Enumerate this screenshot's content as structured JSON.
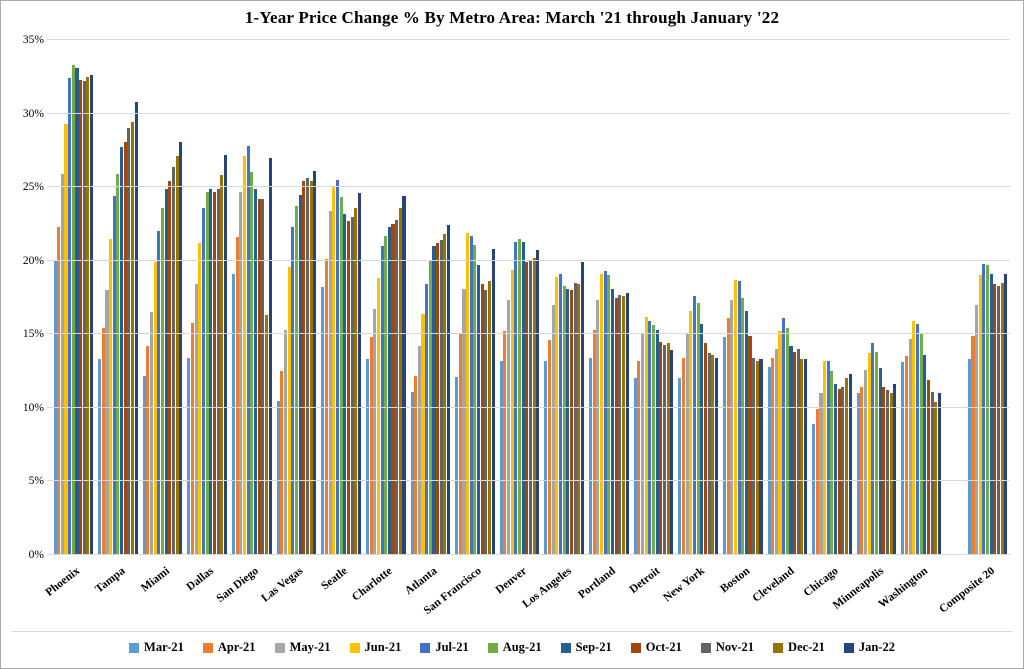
{
  "title": "1-Year Price Change % By Metro Area: March '21 through January '22",
  "chart_data": {
    "type": "bar",
    "title": "1-Year Price Change % By Metro Area: March '21 through January '22",
    "xlabel": "",
    "ylabel": "",
    "ylim": [
      0,
      35
    ],
    "ytick_step": 5,
    "ytick_format": "percent",
    "grid": true,
    "legend_position": "bottom",
    "separated_last_category": true,
    "categories": [
      "Phoenix",
      "Tampa",
      "Miami",
      "Dallas",
      "San Diego",
      "Las Vegas",
      "Seatle",
      "Charlotte",
      "Atlanta",
      "San Francisco",
      "Denver",
      "Los Angeles",
      "Portland",
      "Detroit",
      "New York",
      "Boston",
      "Cleveland",
      "Chicago",
      "Minneapolis",
      "Washington",
      "Composite 20"
    ],
    "series": [
      {
        "name": "Mar-21",
        "color": "#5B9BD5",
        "values": [
          20.0,
          13.3,
          12.2,
          13.4,
          19.1,
          10.5,
          18.2,
          13.3,
          11.1,
          12.1,
          13.2,
          13.2,
          13.4,
          12.0,
          12.0,
          14.8,
          12.8,
          8.9,
          11.0,
          13.1,
          13.3
        ]
      },
      {
        "name": "Apr-21",
        "color": "#ED7D31",
        "values": [
          22.3,
          15.4,
          14.2,
          15.8,
          21.6,
          12.5,
          20.1,
          14.8,
          12.2,
          15.0,
          15.2,
          14.6,
          15.3,
          13.2,
          13.4,
          16.1,
          13.4,
          9.9,
          11.4,
          13.5,
          14.9
        ]
      },
      {
        "name": "May-21",
        "color": "#A5A5A5",
        "values": [
          25.9,
          18.0,
          16.5,
          18.4,
          24.7,
          15.3,
          23.4,
          16.7,
          14.2,
          18.1,
          17.3,
          17.0,
          17.3,
          15.0,
          15.1,
          17.3,
          14.0,
          11.0,
          12.6,
          14.7,
          17.0
        ]
      },
      {
        "name": "Jun-21",
        "color": "#FFC000",
        "values": [
          29.3,
          21.5,
          19.9,
          21.2,
          27.1,
          19.6,
          25.0,
          18.8,
          16.4,
          21.9,
          19.4,
          18.9,
          19.1,
          16.2,
          16.6,
          18.7,
          15.2,
          13.2,
          13.7,
          15.9,
          19.0
        ]
      },
      {
        "name": "Jul-21",
        "color": "#4472C4",
        "values": [
          32.4,
          24.4,
          22.0,
          23.6,
          27.8,
          22.3,
          25.5,
          21.0,
          18.4,
          21.7,
          21.3,
          19.1,
          19.3,
          15.9,
          17.6,
          18.6,
          16.1,
          13.2,
          14.4,
          15.7,
          19.8
        ]
      },
      {
        "name": "Aug-21",
        "color": "#70AD47",
        "values": [
          33.3,
          25.9,
          23.6,
          24.7,
          26.0,
          23.7,
          24.3,
          21.7,
          20.0,
          21.1,
          21.5,
          18.3,
          19.0,
          15.6,
          17.1,
          17.5,
          15.4,
          12.5,
          13.8,
          15.1,
          19.7
        ]
      },
      {
        "name": "Sep-21",
        "color": "#255E91",
        "values": [
          33.1,
          27.7,
          24.9,
          24.9,
          24.9,
          24.5,
          23.2,
          22.3,
          21.0,
          19.7,
          21.3,
          18.1,
          18.1,
          15.3,
          15.7,
          16.6,
          14.2,
          11.6,
          12.7,
          13.6,
          19.1
        ]
      },
      {
        "name": "Oct-21",
        "color": "#9E480E",
        "values": [
          32.3,
          28.1,
          25.4,
          24.7,
          24.2,
          25.4,
          22.7,
          22.5,
          21.2,
          18.4,
          19.9,
          18.0,
          17.5,
          14.5,
          14.4,
          14.9,
          13.8,
          11.3,
          11.4,
          11.9,
          18.4
        ]
      },
      {
        "name": "Nov-21",
        "color": "#636363",
        "values": [
          32.2,
          29.0,
          26.4,
          24.9,
          24.2,
          25.6,
          23.0,
          22.8,
          21.4,
          18.0,
          20.0,
          18.5,
          17.7,
          14.3,
          13.7,
          13.4,
          14.0,
          11.4,
          11.2,
          11.1,
          18.3
        ]
      },
      {
        "name": "Dec-21",
        "color": "#997300",
        "values": [
          32.5,
          29.4,
          27.1,
          25.8,
          16.3,
          25.4,
          23.6,
          23.6,
          21.8,
          18.6,
          20.2,
          18.4,
          17.6,
          14.4,
          13.6,
          13.2,
          13.3,
          12.0,
          11.0,
          10.4,
          18.5
        ]
      },
      {
        "name": "Jan-22",
        "color": "#264478",
        "values": [
          32.6,
          30.8,
          28.1,
          27.2,
          27.0,
          26.1,
          24.6,
          24.4,
          22.4,
          20.8,
          20.7,
          19.9,
          17.8,
          13.9,
          13.4,
          13.3,
          13.3,
          12.3,
          11.6,
          11.0,
          19.1
        ]
      }
    ]
  }
}
